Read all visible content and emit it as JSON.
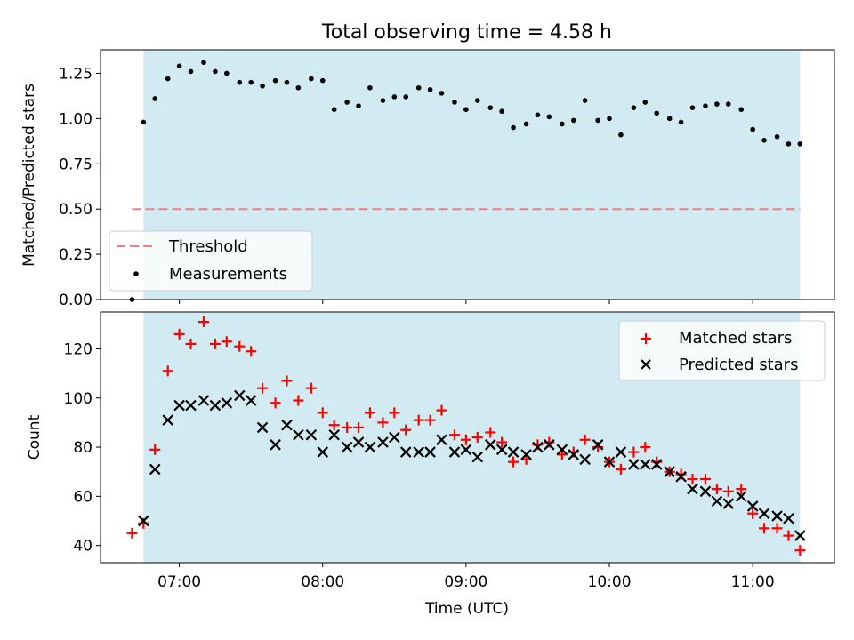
{
  "figure": {
    "title": "Total observing time = 4.58 h"
  },
  "chart_data": [
    {
      "type": "scatter",
      "ylabel": "Matched/Predicted stars",
      "ylim": [
        0,
        1.38
      ],
      "xlim": [
        6.45,
        11.57
      ],
      "x_unit": "hours (UTC)",
      "yticks": [
        0,
        0.25,
        0.5,
        0.75,
        1.0,
        1.25
      ],
      "ytick_labels": [
        "0.00",
        "0.25",
        "0.50",
        "0.75",
        "1.00",
        "1.25"
      ],
      "observing_window": [
        6.75,
        11.33
      ],
      "threshold": {
        "name": "Threshold",
        "y": 0.5,
        "color": "#f08080"
      },
      "legend": {
        "placement": "lower-left",
        "entries": [
          "Threshold",
          "Measurements"
        ]
      },
      "series": [
        {
          "name": "Measurements",
          "marker": "dot",
          "color": "#000000",
          "x": [
            6.67,
            6.75,
            6.83,
            6.92,
            7.0,
            7.08,
            7.17,
            7.25,
            7.33,
            7.42,
            7.5,
            7.58,
            7.67,
            7.75,
            7.83,
            7.92,
            8.0,
            8.08,
            8.17,
            8.25,
            8.33,
            8.42,
            8.5,
            8.58,
            8.67,
            8.75,
            8.83,
            8.92,
            9.0,
            9.08,
            9.17,
            9.25,
            9.33,
            9.42,
            9.5,
            9.58,
            9.67,
            9.75,
            9.83,
            9.92,
            10.0,
            10.08,
            10.17,
            10.25,
            10.33,
            10.42,
            10.5,
            10.58,
            10.67,
            10.75,
            10.83,
            10.92,
            11.0,
            11.08,
            11.17,
            11.25,
            11.33
          ],
          "y": [
            0.0,
            0.98,
            1.11,
            1.22,
            1.29,
            1.26,
            1.31,
            1.26,
            1.25,
            1.2,
            1.2,
            1.18,
            1.21,
            1.2,
            1.17,
            1.22,
            1.21,
            1.05,
            1.09,
            1.07,
            1.17,
            1.1,
            1.12,
            1.12,
            1.17,
            1.16,
            1.14,
            1.09,
            1.05,
            1.1,
            1.06,
            1.04,
            0.95,
            0.97,
            1.02,
            1.01,
            0.97,
            0.99,
            1.1,
            0.99,
            1.0,
            0.91,
            1.06,
            1.09,
            1.03,
            1.0,
            0.98,
            1.06,
            1.07,
            1.08,
            1.08,
            1.05,
            0.94,
            0.88,
            0.9,
            0.86,
            0.86
          ]
        }
      ]
    },
    {
      "type": "scatter",
      "xlabel": "Time (UTC)",
      "ylabel": "Count",
      "ylim": [
        33,
        135
      ],
      "xlim": [
        6.45,
        11.57
      ],
      "x_unit": "hours (UTC)",
      "xticks": [
        7,
        8,
        9,
        10,
        11
      ],
      "xtick_labels": [
        "07:00",
        "08:00",
        "09:00",
        "10:00",
        "11:00"
      ],
      "yticks": [
        40,
        60,
        80,
        100,
        120
      ],
      "ytick_labels": [
        "40",
        "60",
        "80",
        "100",
        "120"
      ],
      "observing_window": [
        6.75,
        11.33
      ],
      "legend": {
        "placement": "upper-right",
        "entries": [
          "Matched stars",
          "Predicted stars"
        ]
      },
      "series": [
        {
          "name": "Matched stars",
          "marker": "plus",
          "color": "#ff0000",
          "x": [
            6.67,
            6.75,
            6.83,
            6.92,
            7.0,
            7.08,
            7.17,
            7.25,
            7.33,
            7.42,
            7.5,
            7.58,
            7.67,
            7.75,
            7.83,
            7.92,
            8.0,
            8.08,
            8.17,
            8.25,
            8.33,
            8.42,
            8.5,
            8.58,
            8.67,
            8.75,
            8.83,
            8.92,
            9.0,
            9.08,
            9.17,
            9.25,
            9.33,
            9.42,
            9.5,
            9.58,
            9.67,
            9.75,
            9.83,
            9.92,
            10.0,
            10.08,
            10.17,
            10.25,
            10.33,
            10.42,
            10.5,
            10.58,
            10.67,
            10.75,
            10.83,
            10.92,
            11.0,
            11.08,
            11.17,
            11.25,
            11.33
          ],
          "y": [
            45,
            49,
            79,
            111,
            126,
            122,
            131,
            122,
            123,
            121,
            119,
            104,
            98,
            107,
            99,
            104,
            94,
            89,
            88,
            88,
            94,
            90,
            94,
            87,
            91,
            91,
            95,
            85,
            83,
            84,
            86,
            82,
            74,
            75,
            81,
            82,
            77,
            78,
            83,
            80,
            74,
            71,
            78,
            80,
            74,
            70,
            69,
            67,
            67,
            63,
            62,
            63,
            53,
            47,
            47,
            44,
            38
          ]
        },
        {
          "name": "Predicted stars",
          "marker": "cross",
          "color": "#000000",
          "x": [
            6.67,
            6.75,
            6.83,
            6.92,
            7.0,
            7.08,
            7.17,
            7.25,
            7.33,
            7.42,
            7.5,
            7.58,
            7.67,
            7.75,
            7.83,
            7.92,
            8.0,
            8.08,
            8.17,
            8.25,
            8.33,
            8.42,
            8.5,
            8.58,
            8.67,
            8.75,
            8.83,
            8.92,
            9.0,
            9.08,
            9.17,
            9.25,
            9.33,
            9.42,
            9.5,
            9.58,
            9.67,
            9.75,
            9.83,
            9.92,
            10.0,
            10.08,
            10.17,
            10.25,
            10.33,
            10.42,
            10.5,
            10.58,
            10.67,
            10.75,
            10.83,
            10.92,
            11.0,
            11.08,
            11.17,
            11.25,
            11.33
          ],
          "y": [
            null,
            50,
            71,
            91,
            97,
            97,
            99,
            97,
            98,
            101,
            99,
            88,
            81,
            89,
            85,
            85,
            78,
            85,
            80,
            82,
            80,
            82,
            84,
            78,
            78,
            78,
            83,
            78,
            79,
            76,
            81,
            79,
            78,
            77,
            80,
            81,
            79,
            77,
            75,
            81,
            74,
            78,
            73,
            73,
            73,
            70,
            68,
            63,
            62,
            58,
            57,
            60,
            56,
            53,
            52,
            51,
            44
          ]
        }
      ]
    }
  ]
}
